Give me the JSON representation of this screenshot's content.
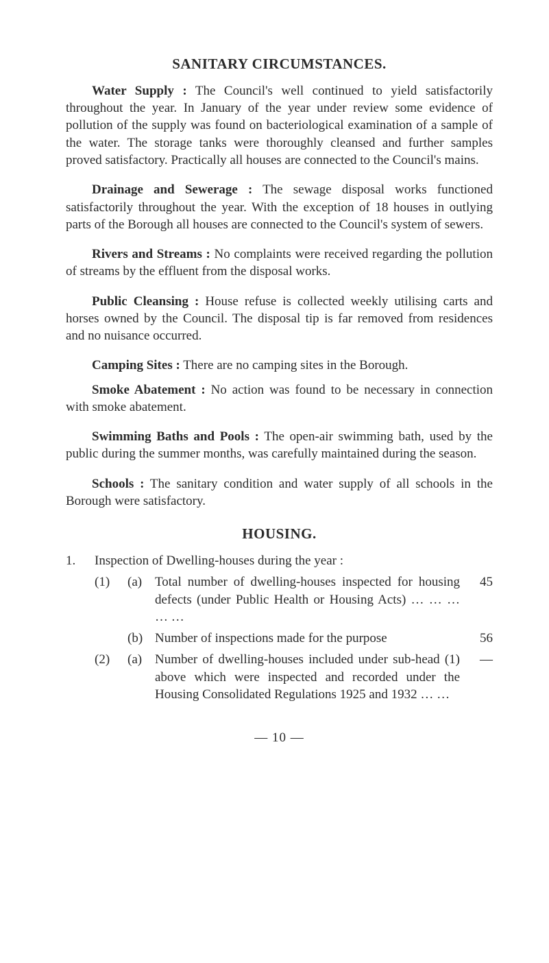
{
  "title": "SANITARY CIRCUMSTANCES.",
  "paragraphs": {
    "water_supply": {
      "lead": "Water Supply :",
      "text": " The Council's well continued to yield satis­factorily throughout the year. In January of the year under review some evidence of pollution of the supply was found on bacteriological examination of a sample of the water. The storage tanks were thoroughly cleansed and further samples proved satis­factory. Practically all houses are connected to the Council's mains."
    },
    "drainage": {
      "lead": "Drainage and Sewerage :",
      "text": " The sewage disposal works func­tioned satisfactorily throughout the year. With the exception of 18 houses in outlying parts of the Borough all houses are connected to the Council's system of sewers."
    },
    "rivers": {
      "lead": "Rivers and Streams :",
      "text": " No complaints were received regarding the pollution of streams by the effluent from the disposal works."
    },
    "cleansing": {
      "lead": "Public Cleansing :",
      "text": " House refuse is collected weekly utilising carts and horses owned by the Council. The disposal tip is far removed from residences and no nuisance occurred."
    },
    "camping": {
      "lead": "Camping Sites :",
      "text": " There are no camping sites in the Borough."
    },
    "smoke": {
      "lead": "Smoke Abatement :",
      "text": " No action was found to be necessary in connection with smoke abatement."
    },
    "swimming": {
      "lead": "Swimming Baths and Pools :",
      "text": " The open-air swimming bath, used by the public during the summer months, was carefully main­tained during the season."
    },
    "schools": {
      "lead": "Schools :",
      "text": " The sanitary condition and water supply of all schools in the Borough were satisfactory."
    }
  },
  "housing": {
    "title": "HOUSING.",
    "intro_num": "1.",
    "intro_text": "Inspection of Dwelling-houses during the year :",
    "items": [
      {
        "sub": "(1)",
        "alpha": "(a)",
        "text": "Total number of dwelling-houses inspected for housing defects (under Public Health or Housing Acts) …  …  …  …  …",
        "value": "45"
      },
      {
        "sub": "",
        "alpha": "(b)",
        "text": "Number of inspections made for the purpose",
        "value": "56"
      },
      {
        "sub": "(2)",
        "alpha": "(a)",
        "text": "Number of dwelling-houses included under sub-head (1) above which were inspected and recorded under the Housing Consoli­dated Regulations 1925 and 1932  …  …",
        "value": "—"
      }
    ]
  },
  "footer": "— 10 —"
}
